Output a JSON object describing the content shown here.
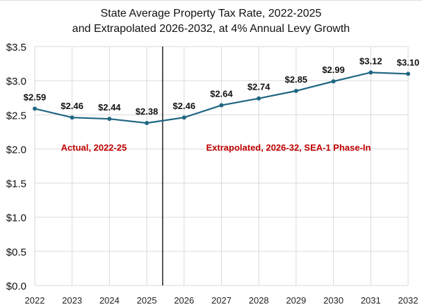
{
  "chart_data": {
    "type": "line",
    "title_line1": "State Average Property Tax Rate, 2022-2025",
    "title_line2": "and Extrapolated 2026-2032, at 4% Annual Levy Growth",
    "categories": [
      "2022",
      "2023",
      "2024",
      "2025",
      "2026",
      "2027",
      "2028",
      "2029",
      "2030",
      "2031",
      "2032"
    ],
    "values": [
      2.59,
      2.46,
      2.44,
      2.38,
      2.46,
      2.64,
      2.74,
      2.85,
      2.99,
      3.12,
      3.1
    ],
    "data_labels": [
      "$2.59",
      "$2.46",
      "$2.44",
      "$2.38",
      "$2.46",
      "$2.64",
      "$2.74",
      "$2.85",
      "$2.99",
      "$3.12",
      "$3.10"
    ],
    "ylim": [
      0,
      3.5
    ],
    "yticks": [
      0,
      0.5,
      1.0,
      1.5,
      2.0,
      2.5,
      3.0,
      3.5
    ],
    "ytick_labels": [
      "$0.0",
      "$0.5",
      "$1.0",
      "$1.5",
      "$2.0",
      "$2.5",
      "$3.0",
      "$3.5"
    ],
    "grid": true,
    "divider_between": [
      "2025",
      "2026"
    ],
    "annotations": [
      "Actual, 2022-25",
      "Extrapolated, 2026-32,  SEA-1 Phase-In"
    ],
    "colors": {
      "line": "#1f6682",
      "annotation": "#c00000",
      "grid": "#d9d9d9",
      "divider": "#000000"
    }
  }
}
